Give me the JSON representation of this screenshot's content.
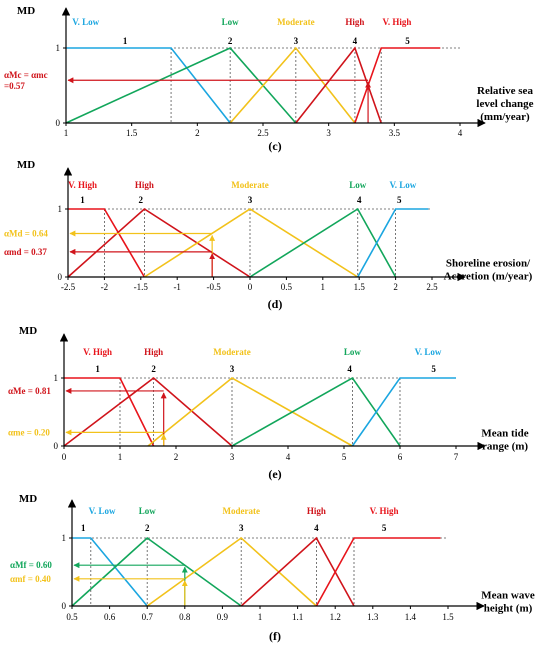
{
  "colors": {
    "vlow": "#1BA6E0",
    "low": "#12A65B",
    "moderate": "#F2C21B",
    "high": "#D0141B",
    "vhigh": "#E8141B",
    "axis": "#000000",
    "guide": "#555555"
  },
  "chart_data": [
    {
      "type": "line",
      "panel_label": "(c)",
      "ylabel": "MD",
      "xlabel_lines": [
        "Relative sea",
        "level change",
        "(mm/year)"
      ],
      "xlim": [
        1,
        4
      ],
      "ylim": [
        0,
        1
      ],
      "x_ticks": [
        "1",
        "1.5",
        "2",
        "2.5",
        "3",
        "3.5",
        "4"
      ],
      "y_ticks": [
        "0",
        "1"
      ],
      "class_numbers": [
        "1",
        "2",
        "3",
        "4",
        "5"
      ],
      "class_number_x": [
        1.45,
        2.25,
        2.75,
        3.2,
        3.6
      ],
      "series": [
        {
          "name": "V. Low",
          "color_key": "vlow",
          "label_x": 1.15,
          "x": [
            1,
            1.8,
            2.25
          ],
          "y": [
            1,
            1,
            0
          ]
        },
        {
          "name": "Low",
          "color_key": "low",
          "label_x": 2.25,
          "x": [
            1,
            2.25,
            2.75
          ],
          "y": [
            0,
            1,
            0
          ]
        },
        {
          "name": "Moderate",
          "color_key": "moderate",
          "label_x": 2.75,
          "x": [
            2.25,
            2.75,
            3.2
          ],
          "y": [
            0,
            1,
            0
          ]
        },
        {
          "name": "High",
          "color_key": "high",
          "label_x": 3.2,
          "x": [
            2.75,
            3.2,
            3.4
          ],
          "y": [
            0,
            1,
            0
          ]
        },
        {
          "name": "V. High",
          "color_key": "vhigh",
          "label_x": 3.52,
          "x": [
            3.2,
            3.4,
            3.85
          ],
          "y": [
            0,
            1,
            1
          ]
        }
      ],
      "dotted_verticals": [
        1.8,
        2.25,
        2.75,
        3.2,
        3.4
      ],
      "membership_annotations": [
        {
          "lines": [
            "αMc = αmc",
            "=0.57"
          ],
          "value": 0.57,
          "x": 3.3,
          "color_key": "high"
        }
      ]
    },
    {
      "type": "line",
      "panel_label": "(d)",
      "ylabel": "MD",
      "xlabel_lines": [
        "Shoreline erosion/",
        "Accretion (m/year)"
      ],
      "xlim": [
        -2.5,
        2.5
      ],
      "ylim": [
        0,
        1
      ],
      "x_ticks": [
        "-2.5",
        "-2",
        "-1.5",
        "-1",
        "-0.5",
        "0",
        "0.5",
        "1",
        "1.5",
        "2",
        "2.5"
      ],
      "y_ticks": [
        "0",
        "1"
      ],
      "class_numbers": [
        "1",
        "2",
        "3",
        "4",
        "5"
      ],
      "class_number_x": [
        -2.3,
        -1.5,
        0,
        1.5,
        2.05
      ],
      "series": [
        {
          "name": "V. High",
          "color_key": "vhigh",
          "label_x": -2.3,
          "x": [
            -2.5,
            -2.0,
            -1.45
          ],
          "y": [
            1,
            1,
            0
          ]
        },
        {
          "name": "High",
          "color_key": "high",
          "label_x": -1.45,
          "x": [
            -2.5,
            -1.45,
            0
          ],
          "y": [
            0,
            1,
            0
          ]
        },
        {
          "name": "Moderate",
          "color_key": "moderate",
          "label_x": 0,
          "x": [
            -1.45,
            0,
            1.48
          ],
          "y": [
            0,
            1,
            0
          ]
        },
        {
          "name": "Low",
          "color_key": "low",
          "label_x": 1.48,
          "x": [
            0,
            1.48,
            2.0
          ],
          "y": [
            0,
            1,
            0
          ]
        },
        {
          "name": "V. Low",
          "color_key": "vlow",
          "label_x": 2.1,
          "x": [
            1.48,
            2.0,
            2.45
          ],
          "y": [
            0,
            1,
            1
          ]
        }
      ],
      "dotted_verticals": [
        -2.0,
        -1.45,
        0,
        1.48,
        2.0
      ],
      "membership_annotations": [
        {
          "lines": [
            "αMd = 0.64"
          ],
          "value": 0.64,
          "x": -0.52,
          "color_key": "moderate"
        },
        {
          "lines": [
            "αmd = 0.37"
          ],
          "value": 0.37,
          "x": -0.52,
          "color_key": "high"
        }
      ]
    },
    {
      "type": "line",
      "panel_label": "(e)",
      "ylabel": "MD",
      "xlabel_lines": [
        "Mean tide",
        "range (m)"
      ],
      "xlim": [
        0,
        7
      ],
      "ylim": [
        0,
        1
      ],
      "x_ticks": [
        "0",
        "1",
        "2",
        "3",
        "4",
        "5",
        "6",
        "7"
      ],
      "y_ticks": [
        "0",
        "1"
      ],
      "class_numbers": [
        "1",
        "2",
        "3",
        "4",
        "5"
      ],
      "class_number_x": [
        0.6,
        1.6,
        3.0,
        5.1,
        6.6
      ],
      "series": [
        {
          "name": "V. High",
          "color_key": "vhigh",
          "label_x": 0.6,
          "x": [
            0,
            1.0,
            1.6
          ],
          "y": [
            1,
            1,
            0
          ]
        },
        {
          "name": "High",
          "color_key": "high",
          "label_x": 1.6,
          "x": [
            0,
            1.6,
            3.0
          ],
          "y": [
            0,
            1,
            0
          ]
        },
        {
          "name": "Moderate",
          "color_key": "moderate",
          "label_x": 3.0,
          "x": [
            1.5,
            3.0,
            5.15
          ],
          "y": [
            0,
            1,
            0
          ]
        },
        {
          "name": "Low",
          "color_key": "low",
          "label_x": 5.15,
          "x": [
            3.0,
            5.15,
            6.0
          ],
          "y": [
            0,
            1,
            0
          ]
        },
        {
          "name": "V. Low",
          "color_key": "vlow",
          "label_x": 6.5,
          "x": [
            5.15,
            6.0,
            7.0
          ],
          "y": [
            0,
            1,
            1
          ]
        }
      ],
      "dotted_verticals": [
        1.0,
        1.6,
        3.0,
        5.15,
        6.0
      ],
      "membership_annotations": [
        {
          "lines": [
            "αMe = 0.81"
          ],
          "value": 0.81,
          "x": 1.78,
          "color_key": "high"
        },
        {
          "lines": [
            "αme = 0.20"
          ],
          "value": 0.2,
          "x": 1.78,
          "color_key": "moderate"
        }
      ]
    },
    {
      "type": "line",
      "panel_label": "(f)",
      "ylabel": "MD",
      "xlabel_lines": [
        "Mean wave",
        "height (m)"
      ],
      "xlim": [
        0.5,
        1.5
      ],
      "ylim": [
        0,
        1
      ],
      "x_ticks": [
        "0.5",
        "0.6",
        "0.7",
        "0.8",
        "0.9",
        "1",
        "1.1",
        "1.2",
        "1.3",
        "1.4",
        "1.5"
      ],
      "y_ticks": [
        "0",
        "1"
      ],
      "class_numbers": [
        "1",
        "2",
        "3",
        "4",
        "5"
      ],
      "class_number_x": [
        0.53,
        0.7,
        0.95,
        1.15,
        1.33
      ],
      "series": [
        {
          "name": "V. Low",
          "color_key": "vlow",
          "label_x": 0.58,
          "x": [
            0.5,
            0.55,
            0.7
          ],
          "y": [
            1,
            1,
            0
          ]
        },
        {
          "name": "Low",
          "color_key": "low",
          "label_x": 0.7,
          "x": [
            0.5,
            0.7,
            0.95
          ],
          "y": [
            0,
            1,
            0
          ]
        },
        {
          "name": "Moderate",
          "color_key": "moderate",
          "label_x": 0.95,
          "x": [
            0.7,
            0.95,
            1.15
          ],
          "y": [
            0,
            1,
            0
          ]
        },
        {
          "name": "High",
          "color_key": "high",
          "label_x": 1.15,
          "x": [
            0.95,
            1.15,
            1.25
          ],
          "y": [
            0,
            1,
            0
          ]
        },
        {
          "name": "V. High",
          "color_key": "vhigh",
          "label_x": 1.33,
          "x": [
            1.15,
            1.25,
            1.48
          ],
          "y": [
            0,
            1,
            1
          ]
        }
      ],
      "dotted_verticals": [
        0.55,
        0.7,
        0.95,
        1.15,
        1.25
      ],
      "membership_annotations": [
        {
          "lines": [
            "αMf = 0.60"
          ],
          "value": 0.6,
          "x": 0.8,
          "color_key": "low"
        },
        {
          "lines": [
            "αmf = 0.40"
          ],
          "value": 0.4,
          "x": 0.8,
          "color_key": "moderate"
        }
      ]
    }
  ]
}
